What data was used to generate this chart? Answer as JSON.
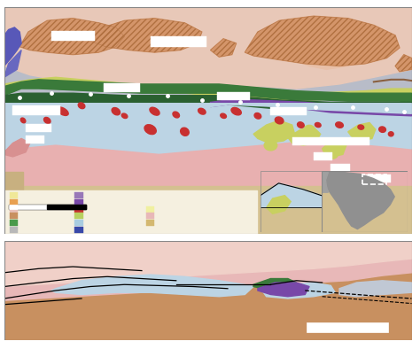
{
  "fig_width": 4.74,
  "fig_height": 3.94,
  "dpi": 100,
  "colors": {
    "gray_bg": "#b8bcc8",
    "light_pink_bg": "#e8c0b8",
    "light_salmon": "#e8b8a8",
    "orange_hatch": "#d4956a",
    "orange_hatch2": "#c8845a",
    "light_blue": "#bcd4e4",
    "pink_lower": "#e8b0b0",
    "pink_lower2": "#d8a0a0",
    "tan_bottom": "#d4c090",
    "green1": "#3a7a3a",
    "green2": "#2a6030",
    "green3": "#4a9a4a",
    "purple1": "#7848a8",
    "purple2": "#604898",
    "blue_stripe": "#5858b8",
    "yellow_green": "#c8d060",
    "olive": "#a0a040",
    "red_blob": "#c83030",
    "brown_stripe": "#8a6040",
    "cream_legend": "#f5f0e0",
    "legend_yellow": "#f0e898",
    "legend_orange": "#e8a050",
    "legend_pink": "#e8c0b8",
    "legend_tan": "#c89060",
    "legend_green": "#4a9a4a",
    "legend_gray": "#b8b8b8",
    "legend_purple1": "#9878b8",
    "legend_purple2": "#7848a8",
    "legend_red": "#c83030",
    "legend_ygreen": "#b8d060",
    "legend_lblue": "#a8cce0",
    "legend_dblue": "#3848a8",
    "legend_lyellow": "#f0f0a0",
    "legend_lpink": "#e8b8b8",
    "legend_ltan": "#d4b870"
  }
}
